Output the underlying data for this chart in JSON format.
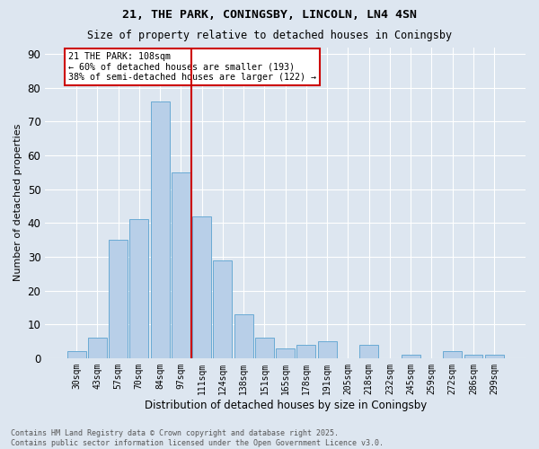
{
  "title1": "21, THE PARK, CONINGSBY, LINCOLN, LN4 4SN",
  "title2": "Size of property relative to detached houses in Coningsby",
  "xlabel": "Distribution of detached houses by size in Coningsby",
  "ylabel": "Number of detached properties",
  "categories": [
    "30sqm",
    "43sqm",
    "57sqm",
    "70sqm",
    "84sqm",
    "97sqm",
    "111sqm",
    "124sqm",
    "138sqm",
    "151sqm",
    "165sqm",
    "178sqm",
    "191sqm",
    "205sqm",
    "218sqm",
    "232sqm",
    "245sqm",
    "259sqm",
    "272sqm",
    "286sqm",
    "299sqm"
  ],
  "values": [
    2,
    6,
    35,
    41,
    76,
    55,
    42,
    29,
    13,
    6,
    3,
    4,
    5,
    0,
    4,
    0,
    1,
    0,
    2,
    1,
    1
  ],
  "bar_color": "#b8cfe8",
  "bar_edge_color": "#6aaad4",
  "background_color": "#dde6f0",
  "grid_color": "#ffffff",
  "vline_color": "#cc0000",
  "annotation_text": "21 THE PARK: 108sqm\n← 60% of detached houses are smaller (193)\n38% of semi-detached houses are larger (122) →",
  "annotation_box_color": "#cc0000",
  "annotation_fill_color": "#ffffff",
  "footer1": "Contains HM Land Registry data © Crown copyright and database right 2025.",
  "footer2": "Contains public sector information licensed under the Open Government Licence v3.0.",
  "ylim": [
    0,
    92
  ],
  "yticks": [
    0,
    10,
    20,
    30,
    40,
    50,
    60,
    70,
    80,
    90
  ]
}
